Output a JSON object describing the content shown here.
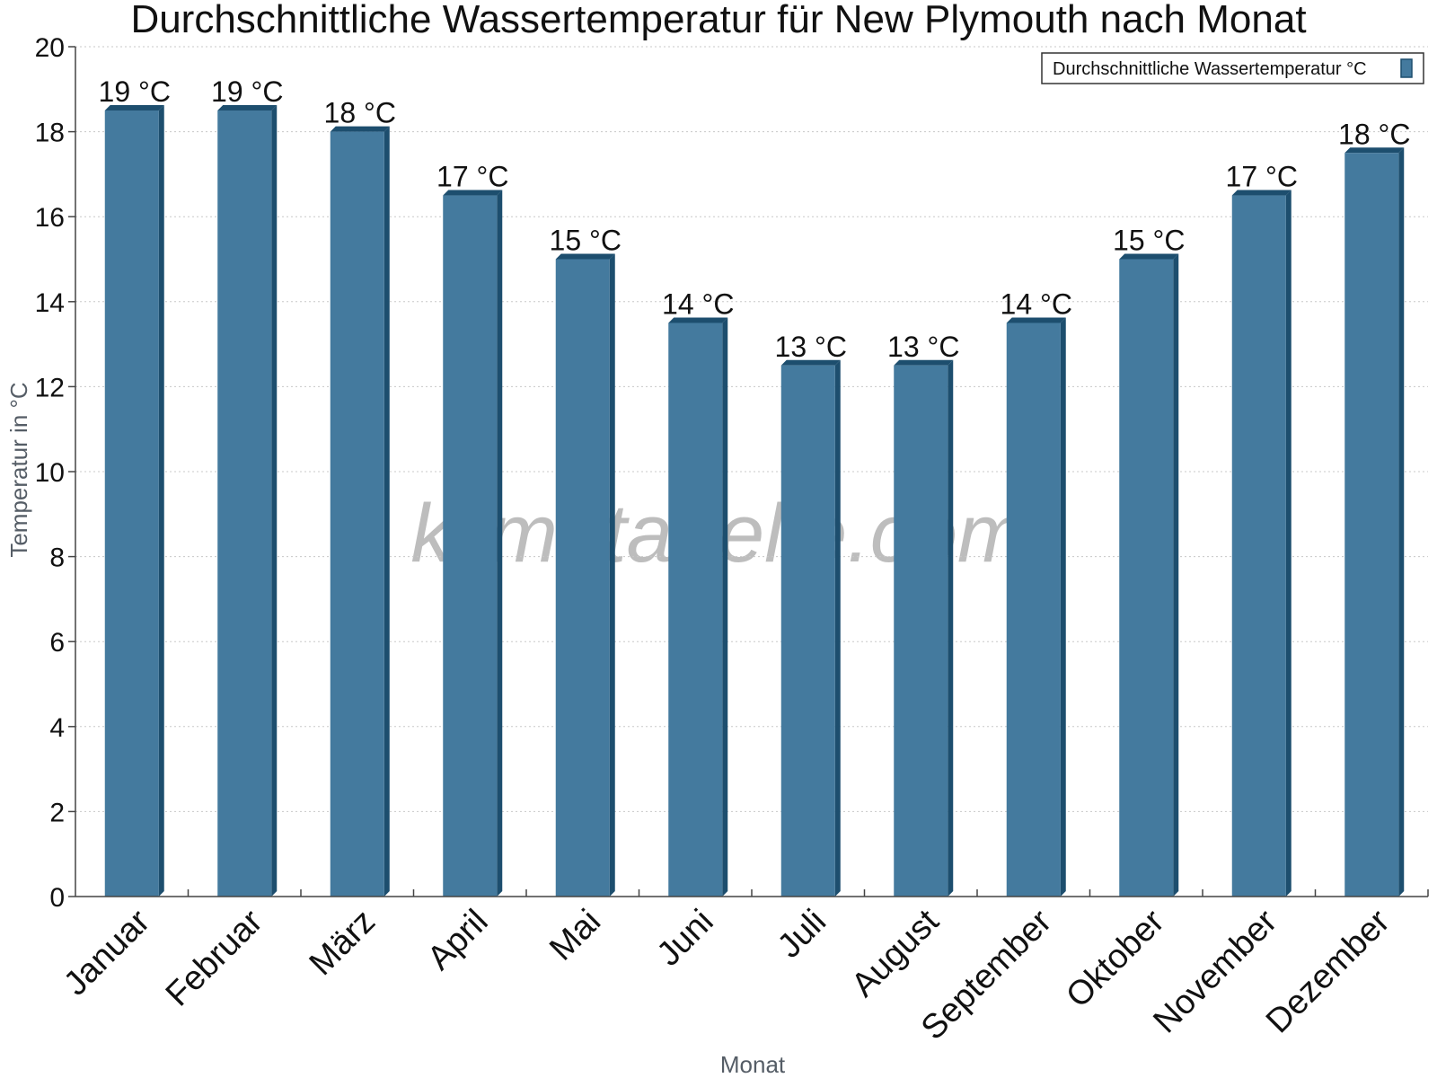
{
  "colors": {
    "bar_face": "#447a9e",
    "bar_side": "#1d4e6e",
    "bar_top": "#1d4e6e",
    "grid": "#c8c8c8",
    "axis": "#444444"
  },
  "watermark": "klimatabelle.com",
  "chart_data": {
    "type": "bar",
    "title": "Durchschnittliche Wassertemperatur für New Plymouth nach Monat",
    "xlabel": "Monat",
    "ylabel": "Temperatur in °C",
    "ylim": [
      0,
      20
    ],
    "yticks": [
      "0",
      "2",
      "4",
      "6",
      "8",
      "10",
      "12",
      "14",
      "16",
      "18",
      "20"
    ],
    "grid": true,
    "legend_position": "top-right",
    "categories": [
      "Januar",
      "Februar",
      "März",
      "April",
      "Mai",
      "Juni",
      "Juli",
      "August",
      "September",
      "Oktober",
      "November",
      "Dezember"
    ],
    "series": [
      {
        "name": "Durchschnittliche Wassertemperatur °C",
        "values": [
          18.5,
          18.5,
          18,
          16.5,
          15,
          13.5,
          12.5,
          12.5,
          13.5,
          15,
          16.5,
          17.5
        ],
        "labels": [
          "19 °C",
          "19 °C",
          "18 °C",
          "17 °C",
          "15 °C",
          "14 °C",
          "13 °C",
          "13 °C",
          "14 °C",
          "15 °C",
          "17 °C",
          "18 °C"
        ]
      }
    ]
  }
}
